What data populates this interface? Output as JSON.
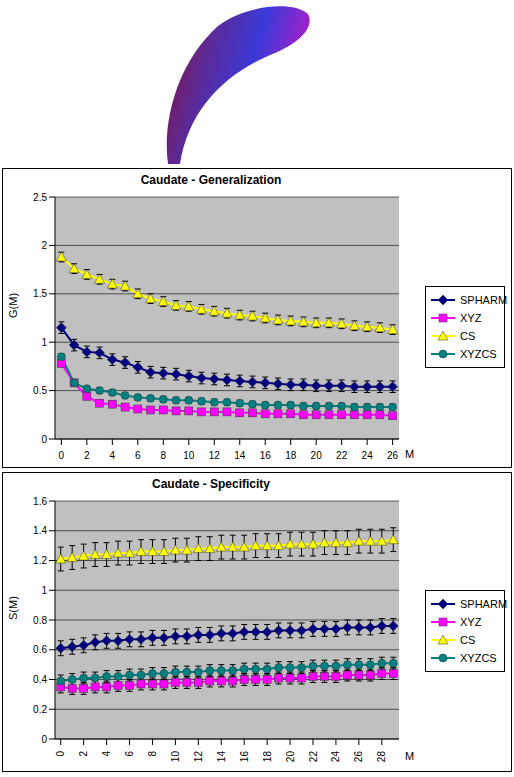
{
  "chart_data": [
    {
      "type": "line",
      "title": "Caudate - Generalization",
      "x_label": "M",
      "y_label": "G(M)",
      "x": [
        0,
        1,
        2,
        3,
        4,
        5,
        6,
        7,
        8,
        9,
        10,
        11,
        12,
        13,
        14,
        15,
        16,
        17,
        18,
        19,
        20,
        21,
        22,
        23,
        24,
        25,
        26
      ],
      "xlim": [
        -0.5,
        26.5
      ],
      "xticks": [
        0,
        2,
        4,
        6,
        8,
        10,
        12,
        14,
        16,
        18,
        20,
        22,
        24,
        26
      ],
      "ylim": [
        0,
        2.5
      ],
      "yticks": [
        0,
        0.5,
        1,
        1.5,
        2,
        2.5
      ],
      "grid": true,
      "legend": "right",
      "series": [
        {
          "name": "SPHARM",
          "color": "#000080",
          "marker": "diamond",
          "error": 0.06,
          "values": [
            1.15,
            0.97,
            0.9,
            0.89,
            0.82,
            0.79,
            0.74,
            0.69,
            0.68,
            0.67,
            0.65,
            0.63,
            0.62,
            0.61,
            0.6,
            0.59,
            0.58,
            0.57,
            0.56,
            0.56,
            0.55,
            0.55,
            0.55,
            0.54,
            0.54,
            0.54,
            0.54
          ]
        },
        {
          "name": "XYZ",
          "color": "#ff00ff",
          "marker": "square",
          "error": 0.03,
          "values": [
            0.78,
            0.58,
            0.44,
            0.37,
            0.36,
            0.33,
            0.31,
            0.3,
            0.3,
            0.29,
            0.29,
            0.28,
            0.28,
            0.28,
            0.27,
            0.27,
            0.26,
            0.26,
            0.26,
            0.25,
            0.25,
            0.25,
            0.25,
            0.25,
            0.25,
            0.25,
            0.24
          ]
        },
        {
          "name": "CS",
          "color": "#ffff00",
          "marker": "triangle",
          "error": 0.05,
          "values": [
            1.88,
            1.76,
            1.7,
            1.65,
            1.6,
            1.58,
            1.5,
            1.45,
            1.42,
            1.38,
            1.37,
            1.34,
            1.32,
            1.3,
            1.28,
            1.27,
            1.25,
            1.23,
            1.22,
            1.21,
            1.2,
            1.2,
            1.19,
            1.17,
            1.16,
            1.15,
            1.13
          ]
        },
        {
          "name": "XYZCS",
          "color": "#008080",
          "marker": "circle",
          "error": 0.03,
          "values": [
            0.85,
            0.58,
            0.52,
            0.5,
            0.48,
            0.45,
            0.43,
            0.42,
            0.41,
            0.4,
            0.4,
            0.39,
            0.38,
            0.38,
            0.37,
            0.36,
            0.35,
            0.35,
            0.35,
            0.34,
            0.34,
            0.34,
            0.34,
            0.33,
            0.33,
            0.33,
            0.33
          ]
        }
      ]
    },
    {
      "type": "line",
      "title": "Caudate - Specificity",
      "x_label": "M",
      "y_label": "S(M)",
      "x": [
        0,
        1,
        2,
        3,
        4,
        5,
        6,
        7,
        8,
        9,
        10,
        11,
        12,
        13,
        14,
        15,
        16,
        17,
        18,
        19,
        20,
        21,
        22,
        23,
        24,
        25,
        26,
        27,
        28,
        29
      ],
      "xlim": [
        -0.5,
        29.5
      ],
      "xticks": [
        0,
        2,
        4,
        6,
        8,
        10,
        12,
        14,
        16,
        18,
        20,
        22,
        24,
        26,
        28
      ],
      "ylim": [
        0,
        1.6
      ],
      "yticks": [
        0,
        0.2,
        0.4,
        0.6,
        0.8,
        1,
        1.2,
        1.4,
        1.6
      ],
      "grid": true,
      "legend": "right",
      "series": [
        {
          "name": "SPHARM",
          "color": "#000080",
          "marker": "diamond",
          "error": 0.05,
          "values": [
            0.61,
            0.62,
            0.63,
            0.65,
            0.66,
            0.66,
            0.67,
            0.67,
            0.68,
            0.68,
            0.69,
            0.69,
            0.7,
            0.7,
            0.71,
            0.71,
            0.72,
            0.72,
            0.72,
            0.73,
            0.73,
            0.73,
            0.74,
            0.74,
            0.74,
            0.75,
            0.75,
            0.75,
            0.76,
            0.76
          ]
        },
        {
          "name": "XYZ",
          "color": "#ff00ff",
          "marker": "square",
          "error": 0.04,
          "values": [
            0.35,
            0.34,
            0.34,
            0.35,
            0.35,
            0.36,
            0.36,
            0.37,
            0.37,
            0.37,
            0.38,
            0.38,
            0.38,
            0.39,
            0.39,
            0.39,
            0.4,
            0.4,
            0.4,
            0.41,
            0.41,
            0.41,
            0.42,
            0.42,
            0.42,
            0.43,
            0.43,
            0.43,
            0.44,
            0.44
          ]
        },
        {
          "name": "CS",
          "color": "#ffff00",
          "marker": "triangle",
          "error": 0.08,
          "values": [
            1.21,
            1.22,
            1.23,
            1.24,
            1.24,
            1.25,
            1.25,
            1.26,
            1.26,
            1.26,
            1.27,
            1.27,
            1.28,
            1.28,
            1.29,
            1.29,
            1.29,
            1.3,
            1.3,
            1.3,
            1.31,
            1.31,
            1.31,
            1.32,
            1.32,
            1.32,
            1.33,
            1.33,
            1.33,
            1.34
          ]
        },
        {
          "name": "XYZCS",
          "color": "#008080",
          "marker": "circle",
          "error": 0.04,
          "values": [
            0.39,
            0.4,
            0.41,
            0.41,
            0.42,
            0.42,
            0.43,
            0.43,
            0.44,
            0.44,
            0.45,
            0.45,
            0.45,
            0.46,
            0.46,
            0.46,
            0.47,
            0.47,
            0.47,
            0.48,
            0.48,
            0.48,
            0.49,
            0.49,
            0.49,
            0.5,
            0.5,
            0.5,
            0.51,
            0.51
          ]
        }
      ]
    }
  ]
}
